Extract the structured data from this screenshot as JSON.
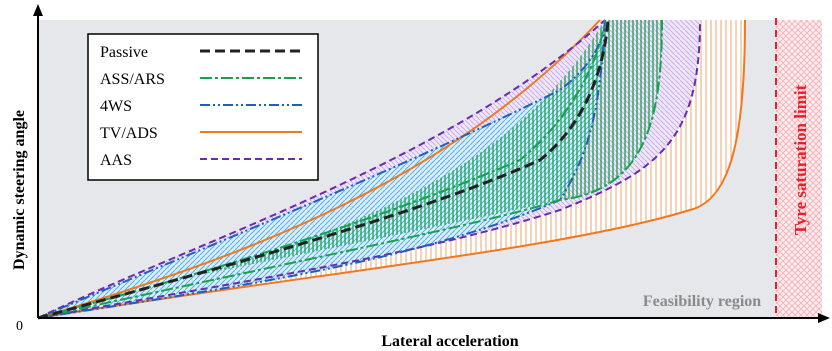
{
  "axes": {
    "x_label": "Lateral acceleration",
    "y_label": "Dynamic steering angle",
    "origin_label": "0"
  },
  "legend": {
    "entries": [
      {
        "label": "Passive",
        "style": "dashed-black"
      },
      {
        "label": "ASS/ARS",
        "style": "dashdot-green"
      },
      {
        "label": "4WS",
        "style": "dashdotdot-blue"
      },
      {
        "label": "TV/ADS",
        "style": "solid-orange"
      },
      {
        "label": "AAS",
        "style": "dashed-purple"
      }
    ]
  },
  "annotations": {
    "feasibility": "Feasibility region",
    "saturation": "Tyre saturation limit"
  },
  "colors": {
    "passive": "#222222",
    "ass_ars": "#16a34a",
    "fourws": "#1f5fbf",
    "tv_ads": "#f07820",
    "aas": "#6a2bb0",
    "saturation": "#e8202a",
    "feasibility_fill": "#e6e7ea",
    "hatch_blue": "#6bb7ea",
    "hatch_purple": "#c3a7e6",
    "hatch_orange": "#f5b07a"
  }
}
